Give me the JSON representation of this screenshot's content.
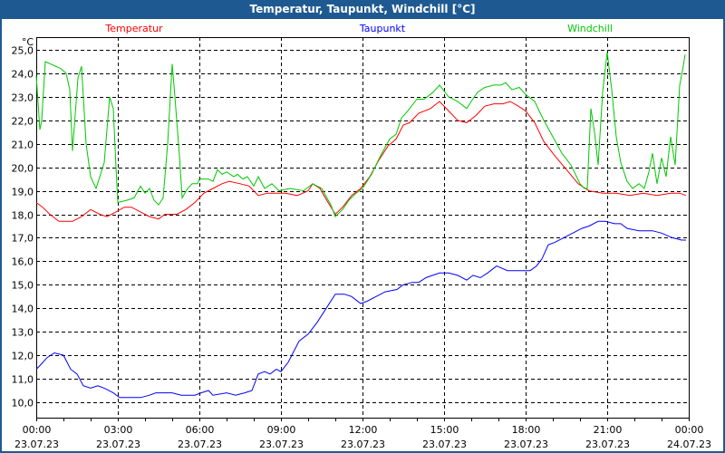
{
  "window": {
    "title": "Temperatur, Taupunkt, Windchill [°C]"
  },
  "chart_data": {
    "type": "line",
    "title": "Temperatur, Taupunkt, Windchill [°C]",
    "ylabel": "°C",
    "xlabel": "",
    "x_unit": "minutes since 23.07.23 00:00",
    "xlim": [
      0,
      1440
    ],
    "ylim": [
      9.5,
      25.5
    ],
    "grid": true,
    "yticks": [
      "10,0",
      "11,0",
      "12,0",
      "13,0",
      "14,0",
      "15,0",
      "16,0",
      "17,0",
      "18,0",
      "19,0",
      "20,0",
      "21,0",
      "22,0",
      "23,0",
      "24,0",
      "25,0"
    ],
    "ytick_values": [
      10,
      11,
      12,
      13,
      14,
      15,
      16,
      17,
      18,
      19,
      20,
      21,
      22,
      23,
      24,
      25
    ],
    "xticks": [
      {
        "time": "00:00",
        "date": "23.07.23",
        "min": 0
      },
      {
        "time": "03:00",
        "date": "23.07.23",
        "min": 180
      },
      {
        "time": "06:00",
        "date": "23.07.23",
        "min": 360
      },
      {
        "time": "09:00",
        "date": "23.07.23",
        "min": 540
      },
      {
        "time": "12:00",
        "date": "23.07.23",
        "min": 720
      },
      {
        "time": "15:00",
        "date": "23.07.23",
        "min": 900
      },
      {
        "time": "18:00",
        "date": "23.07.23",
        "min": 1080
      },
      {
        "time": "21:00",
        "date": "23.07.23",
        "min": 1260
      },
      {
        "time": "00:00",
        "date": "24.07.23",
        "min": 1440
      }
    ],
    "series": [
      {
        "name": "Temperatur",
        "color": "#ff0000",
        "points": [
          [
            0,
            18.5
          ],
          [
            14,
            18.3
          ],
          [
            30,
            18.0
          ],
          [
            50,
            17.7
          ],
          [
            80,
            17.7
          ],
          [
            100,
            17.9
          ],
          [
            120,
            18.2
          ],
          [
            140,
            18.0
          ],
          [
            156,
            17.9
          ],
          [
            176,
            18.1
          ],
          [
            194,
            18.3
          ],
          [
            210,
            18.3
          ],
          [
            230,
            18.1
          ],
          [
            250,
            17.9
          ],
          [
            270,
            17.8
          ],
          [
            284,
            18.0
          ],
          [
            310,
            18.0
          ],
          [
            330,
            18.2
          ],
          [
            350,
            18.5
          ],
          [
            370,
            18.9
          ],
          [
            390,
            19.1
          ],
          [
            410,
            19.3
          ],
          [
            426,
            19.4
          ],
          [
            450,
            19.3
          ],
          [
            470,
            19.2
          ],
          [
            490,
            18.8
          ],
          [
            510,
            18.9
          ],
          [
            530,
            18.9
          ],
          [
            550,
            18.9
          ],
          [
            576,
            18.8
          ],
          [
            600,
            19.0
          ],
          [
            610,
            19.3
          ],
          [
            626,
            19.1
          ],
          [
            644,
            18.5
          ],
          [
            660,
            18.0
          ],
          [
            676,
            18.3
          ],
          [
            696,
            18.8
          ],
          [
            716,
            19.1
          ],
          [
            736,
            19.6
          ],
          [
            756,
            20.3
          ],
          [
            776,
            20.9
          ],
          [
            794,
            21.2
          ],
          [
            810,
            21.8
          ],
          [
            824,
            21.9
          ],
          [
            844,
            22.3
          ],
          [
            870,
            22.5
          ],
          [
            890,
            22.8
          ],
          [
            910,
            22.4
          ],
          [
            930,
            22.0
          ],
          [
            950,
            21.9
          ],
          [
            970,
            22.2
          ],
          [
            990,
            22.6
          ],
          [
            1010,
            22.7
          ],
          [
            1030,
            22.7
          ],
          [
            1046,
            22.8
          ],
          [
            1064,
            22.6
          ],
          [
            1080,
            22.4
          ],
          [
            1100,
            21.9
          ],
          [
            1120,
            21.1
          ],
          [
            1144,
            20.5
          ],
          [
            1170,
            19.9
          ],
          [
            1196,
            19.3
          ],
          [
            1220,
            19.0
          ],
          [
            1250,
            18.9
          ],
          [
            1280,
            18.9
          ],
          [
            1310,
            18.8
          ],
          [
            1340,
            18.9
          ],
          [
            1370,
            18.8
          ],
          [
            1400,
            18.9
          ],
          [
            1420,
            18.9
          ],
          [
            1434,
            18.8
          ]
        ]
      },
      {
        "name": "Taupunkt",
        "color": "#0000ff",
        "points": [
          [
            0,
            11.4
          ],
          [
            10,
            11.6
          ],
          [
            24,
            11.9
          ],
          [
            40,
            12.1
          ],
          [
            60,
            12.0
          ],
          [
            76,
            11.4
          ],
          [
            90,
            11.2
          ],
          [
            104,
            10.7
          ],
          [
            120,
            10.6
          ],
          [
            136,
            10.7
          ],
          [
            150,
            10.6
          ],
          [
            170,
            10.4
          ],
          [
            184,
            10.2
          ],
          [
            210,
            10.2
          ],
          [
            230,
            10.2
          ],
          [
            250,
            10.3
          ],
          [
            264,
            10.4
          ],
          [
            280,
            10.4
          ],
          [
            300,
            10.4
          ],
          [
            320,
            10.3
          ],
          [
            350,
            10.3
          ],
          [
            364,
            10.4
          ],
          [
            380,
            10.5
          ],
          [
            390,
            10.3
          ],
          [
            420,
            10.4
          ],
          [
            440,
            10.3
          ],
          [
            460,
            10.4
          ],
          [
            476,
            10.5
          ],
          [
            490,
            11.2
          ],
          [
            504,
            11.3
          ],
          [
            516,
            11.2
          ],
          [
            530,
            11.4
          ],
          [
            540,
            11.3
          ],
          [
            556,
            11.7
          ],
          [
            580,
            12.6
          ],
          [
            600,
            12.9
          ],
          [
            620,
            13.4
          ],
          [
            640,
            14.0
          ],
          [
            660,
            14.6
          ],
          [
            680,
            14.6
          ],
          [
            696,
            14.5
          ],
          [
            716,
            14.2
          ],
          [
            730,
            14.3
          ],
          [
            750,
            14.5
          ],
          [
            770,
            14.7
          ],
          [
            796,
            14.8
          ],
          [
            810,
            15.0
          ],
          [
            830,
            15.1
          ],
          [
            844,
            15.1
          ],
          [
            860,
            15.3
          ],
          [
            890,
            15.5
          ],
          [
            910,
            15.5
          ],
          [
            930,
            15.4
          ],
          [
            950,
            15.2
          ],
          [
            964,
            15.4
          ],
          [
            980,
            15.3
          ],
          [
            996,
            15.5
          ],
          [
            1016,
            15.8
          ],
          [
            1040,
            15.6
          ],
          [
            1060,
            15.6
          ],
          [
            1090,
            15.6
          ],
          [
            1104,
            15.8
          ],
          [
            1116,
            16.1
          ],
          [
            1130,
            16.7
          ],
          [
            1144,
            16.8
          ],
          [
            1164,
            17.0
          ],
          [
            1184,
            17.2
          ],
          [
            1204,
            17.4
          ],
          [
            1220,
            17.5
          ],
          [
            1240,
            17.7
          ],
          [
            1256,
            17.7
          ],
          [
            1276,
            17.6
          ],
          [
            1290,
            17.6
          ],
          [
            1304,
            17.4
          ],
          [
            1330,
            17.3
          ],
          [
            1360,
            17.3
          ],
          [
            1380,
            17.2
          ],
          [
            1404,
            17.0
          ],
          [
            1424,
            16.9
          ],
          [
            1434,
            16.9
          ]
        ]
      },
      {
        "name": "Windchill",
        "color": "#00c800",
        "points": [
          [
            0,
            23.9
          ],
          [
            8,
            21.6
          ],
          [
            12,
            22.0
          ],
          [
            20,
            24.5
          ],
          [
            54,
            24.2
          ],
          [
            66,
            24.0
          ],
          [
            74,
            23.3
          ],
          [
            80,
            20.7
          ],
          [
            92,
            23.8
          ],
          [
            100,
            24.3
          ],
          [
            110,
            21.0
          ],
          [
            120,
            19.6
          ],
          [
            132,
            19.1
          ],
          [
            150,
            20.2
          ],
          [
            162,
            23.0
          ],
          [
            170,
            22.5
          ],
          [
            176,
            20.0
          ],
          [
            180,
            18.5
          ],
          [
            200,
            18.6
          ],
          [
            216,
            18.7
          ],
          [
            230,
            19.2
          ],
          [
            240,
            18.9
          ],
          [
            250,
            19.1
          ],
          [
            260,
            18.6
          ],
          [
            270,
            18.4
          ],
          [
            280,
            18.7
          ],
          [
            290,
            21.0
          ],
          [
            300,
            24.4
          ],
          [
            306,
            23.0
          ],
          [
            316,
            20.5
          ],
          [
            322,
            18.7
          ],
          [
            334,
            19.1
          ],
          [
            344,
            19.3
          ],
          [
            356,
            19.3
          ],
          [
            360,
            19.5
          ],
          [
            380,
            19.5
          ],
          [
            390,
            19.4
          ],
          [
            400,
            19.9
          ],
          [
            410,
            19.7
          ],
          [
            420,
            19.8
          ],
          [
            436,
            19.6
          ],
          [
            444,
            19.7
          ],
          [
            456,
            19.5
          ],
          [
            466,
            19.6
          ],
          [
            480,
            19.2
          ],
          [
            490,
            19.6
          ],
          [
            504,
            19.1
          ],
          [
            520,
            19.3
          ],
          [
            536,
            19.0
          ],
          [
            560,
            19.1
          ],
          [
            590,
            19.0
          ],
          [
            610,
            19.3
          ],
          [
            630,
            19.1
          ],
          [
            650,
            18.4
          ],
          [
            660,
            17.9
          ],
          [
            676,
            18.2
          ],
          [
            690,
            18.6
          ],
          [
            706,
            18.9
          ],
          [
            720,
            19.1
          ],
          [
            740,
            19.7
          ],
          [
            760,
            20.5
          ],
          [
            780,
            21.2
          ],
          [
            794,
            21.4
          ],
          [
            806,
            22.1
          ],
          [
            820,
            22.4
          ],
          [
            840,
            22.9
          ],
          [
            856,
            22.9
          ],
          [
            876,
            23.2
          ],
          [
            890,
            23.5
          ],
          [
            910,
            23.0
          ],
          [
            930,
            22.8
          ],
          [
            950,
            22.5
          ],
          [
            960,
            22.8
          ],
          [
            974,
            23.2
          ],
          [
            990,
            23.4
          ],
          [
            1010,
            23.5
          ],
          [
            1026,
            23.5
          ],
          [
            1036,
            23.6
          ],
          [
            1050,
            23.3
          ],
          [
            1066,
            23.4
          ],
          [
            1080,
            23.1
          ],
          [
            1100,
            22.8
          ],
          [
            1120,
            22.0
          ],
          [
            1140,
            21.3
          ],
          [
            1160,
            20.6
          ],
          [
            1180,
            20.1
          ],
          [
            1200,
            19.3
          ],
          [
            1210,
            19.1
          ],
          [
            1216,
            19.1
          ],
          [
            1224,
            22.5
          ],
          [
            1232,
            21.5
          ],
          [
            1240,
            20.1
          ],
          [
            1250,
            23.2
          ],
          [
            1260,
            24.9
          ],
          [
            1270,
            23.3
          ],
          [
            1280,
            21.3
          ],
          [
            1290,
            20.2
          ],
          [
            1304,
            19.4
          ],
          [
            1316,
            19.1
          ],
          [
            1330,
            19.3
          ],
          [
            1342,
            19.1
          ],
          [
            1352,
            19.8
          ],
          [
            1360,
            20.6
          ],
          [
            1370,
            19.3
          ],
          [
            1380,
            20.4
          ],
          [
            1390,
            19.6
          ],
          [
            1400,
            21.3
          ],
          [
            1410,
            20.1
          ],
          [
            1420,
            23.5
          ],
          [
            1426,
            24.1
          ],
          [
            1432,
            24.8
          ]
        ]
      }
    ]
  }
}
